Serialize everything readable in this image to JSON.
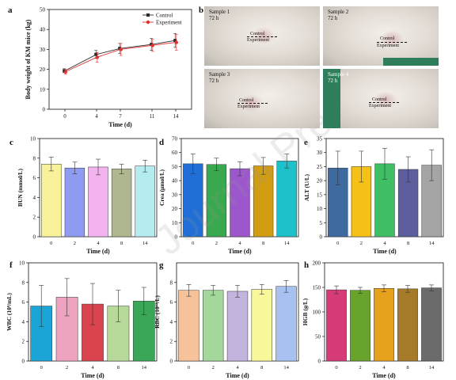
{
  "panels": {
    "a": {
      "label": "a",
      "type": "line",
      "xlabel": "Time (d)",
      "ylabel": "Body weight of KM mice (kg)",
      "x": [
        0,
        4,
        7,
        11,
        14
      ],
      "xticks": [
        "0",
        "4",
        "7",
        "11",
        "14"
      ],
      "ylim": [
        0,
        50
      ],
      "yticks": [
        "0",
        "10",
        "20",
        "30",
        "40",
        "50"
      ],
      "legend": [
        "Control",
        "Experiment"
      ],
      "series": [
        {
          "name": "Control",
          "color": "#2b2b2b",
          "values": [
            19.3,
            27.5,
            30.5,
            32.5,
            34.5
          ],
          "errors": [
            1.0,
            2.0,
            2.5,
            3.0,
            3.5
          ]
        },
        {
          "name": "Experiment",
          "color": "#e03030",
          "values": [
            18.7,
            26.0,
            30.0,
            32.0,
            33.5
          ],
          "errors": [
            1.2,
            2.5,
            3.0,
            3.0,
            4.0
          ]
        }
      ]
    },
    "b": {
      "label": "b",
      "samples": [
        {
          "name": "Sample 1",
          "time": "72 h",
          "top": "Control",
          "bottom": "Experiment"
        },
        {
          "name": "Sample 2",
          "time": "72 h",
          "top": "Control",
          "bottom": "Experiment"
        },
        {
          "name": "Sample 3",
          "time": "72 h",
          "top": "Control",
          "bottom": "Experiment"
        },
        {
          "name": "Sample 4",
          "time": "72 h",
          "top": "Control",
          "bottom": "Experiment"
        }
      ]
    },
    "c": {
      "label": "c",
      "type": "bar",
      "xlabel": "Time (d)",
      "ylabel": "BUN (mmol/L)",
      "categories": [
        "0",
        "2",
        "4",
        "8",
        "14"
      ],
      "values": [
        7.4,
        7.0,
        7.1,
        6.9,
        7.2
      ],
      "errors": [
        0.7,
        0.6,
        0.8,
        0.5,
        0.6
      ],
      "colors": [
        "#f9f29a",
        "#8e9bf0",
        "#f2b3ee",
        "#aeb790",
        "#b4ecf0"
      ],
      "ylim": [
        0,
        10
      ],
      "yticks": [
        "0",
        "2",
        "4",
        "6",
        "8",
        "10"
      ]
    },
    "d": {
      "label": "d",
      "type": "bar",
      "xlabel": "Time (d)",
      "ylabel": "Crea (μmol/L)",
      "categories": [
        "0",
        "2",
        "4",
        "8",
        "14"
      ],
      "values": [
        52,
        51.5,
        48.5,
        50.5,
        54
      ],
      "errors": [
        7,
        4.5,
        5,
        6,
        5
      ],
      "colors": [
        "#1f6fd6",
        "#3aa84e",
        "#9c57cc",
        "#d39d12",
        "#1cc1c9"
      ],
      "ylim": [
        0,
        70
      ],
      "yticks": [
        "0",
        "10",
        "20",
        "30",
        "40",
        "50",
        "60",
        "70"
      ]
    },
    "e": {
      "label": "e",
      "type": "bar",
      "xlabel": "Time (d)",
      "ylabel": "ALT (U/L)",
      "categories": [
        "0",
        "2",
        "4",
        "8",
        "14"
      ],
      "values": [
        24.5,
        25,
        26,
        24,
        25.5
      ],
      "errors": [
        6,
        5.5,
        5.5,
        4.5,
        5.5
      ],
      "colors": [
        "#3e6aa0",
        "#f6c117",
        "#3fbf64",
        "#5b5e9b",
        "#a5a5a5"
      ],
      "ylim": [
        0,
        35
      ],
      "yticks": [
        "0",
        "5",
        "10",
        "15",
        "20",
        "25",
        "30",
        "35"
      ]
    },
    "f": {
      "label": "f",
      "type": "bar",
      "xlabel": "Time (d)",
      "ylabel": "WBC (10⁹/mL)",
      "categories": [
        "0",
        "2",
        "4",
        "8",
        "14"
      ],
      "values": [
        5.6,
        6.5,
        5.8,
        5.6,
        6.1
      ],
      "errors": [
        2.1,
        1.9,
        2.1,
        1.6,
        1.4
      ],
      "colors": [
        "#1aa5d6",
        "#eda3c0",
        "#d9444f",
        "#b7d99a",
        "#3aa758"
      ],
      "ylim": [
        0,
        10
      ],
      "yticks": [
        "0",
        "2",
        "4",
        "6",
        "8",
        "10"
      ]
    },
    "g": {
      "label": "g",
      "type": "bar",
      "xlabel": "Time (d)",
      "ylabel": "RBC (10¹²/L)",
      "categories": [
        "0",
        "2",
        "4",
        "8",
        "14"
      ],
      "values": [
        7.2,
        7.2,
        7.1,
        7.3,
        7.6
      ],
      "errors": [
        0.6,
        0.5,
        0.6,
        0.5,
        0.6
      ],
      "colors": [
        "#f7c19a",
        "#a3d89a",
        "#c2b4dc",
        "#f8f79a",
        "#a7c2f0"
      ],
      "ylim": [
        0,
        10
      ],
      "yticks": [
        "0",
        "2",
        "4",
        "6",
        "8"
      ]
    },
    "h": {
      "label": "h",
      "type": "bar",
      "xlabel": "Time (d)",
      "ylabel": "HGB (g/L)",
      "categories": [
        "0",
        "2",
        "4",
        "8",
        "14"
      ],
      "values": [
        145,
        144,
        148,
        147,
        149
      ],
      "errors": [
        8,
        6,
        7,
        7,
        6
      ],
      "colors": [
        "#d63b78",
        "#68a32c",
        "#e6a21d",
        "#a57b2a",
        "#6b6b6b"
      ],
      "ylim": [
        0,
        200
      ],
      "yticks": [
        "0",
        "50",
        "100",
        "150",
        "200"
      ]
    }
  },
  "watermark": "Journal Pre-p"
}
